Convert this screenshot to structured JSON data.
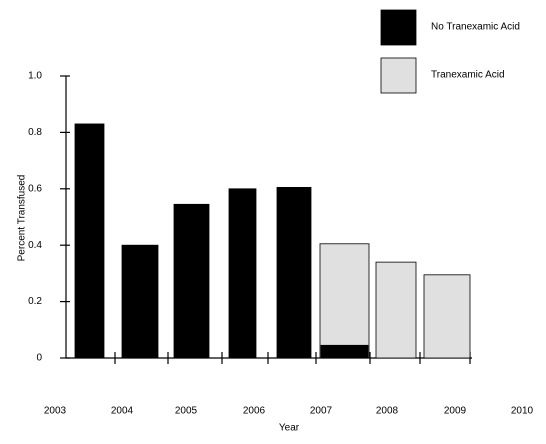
{
  "chart_data": {
    "type": "bar",
    "x_label": "Year",
    "y_label": "Percent  Transfused",
    "categories": [
      "2003",
      "2004",
      "2005",
      "2006",
      "2007",
      "2008",
      "2009",
      "2010"
    ],
    "series": [
      {
        "name": "No Tranexamic Acid",
        "color": "#000000",
        "values": [
          0.83,
          0.4,
          0.545,
          0.6,
          0.605,
          0.045,
          null,
          null
        ]
      },
      {
        "name": "Tranexamic Acid",
        "color": "#e0e0e0",
        "values": [
          null,
          null,
          null,
          null,
          null,
          0.405,
          0.34,
          0.295
        ]
      }
    ],
    "ylim": [
      0,
      1
    ],
    "yticks": [
      0,
      0.2,
      0.4,
      0.6,
      0.8,
      {
        "value": 1,
        "label": "1.0"
      }
    ],
    "legend": "top-right"
  }
}
